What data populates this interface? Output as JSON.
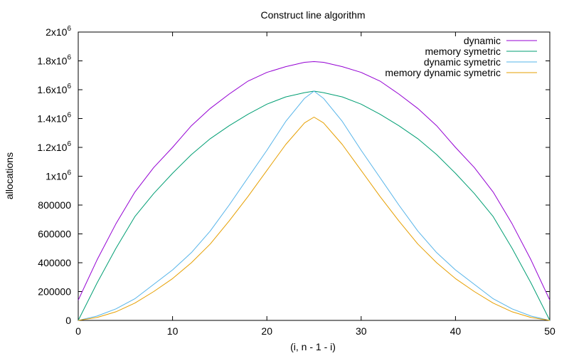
{
  "chart_data": {
    "type": "line",
    "title": "Construct line algorithm",
    "xlabel": "(i, n - 1 - i)",
    "ylabel": "allocations",
    "xlim": [
      0,
      50
    ],
    "ylim": [
      0,
      2000000
    ],
    "legend_position": "top-right",
    "grid": false,
    "x_ticks": [
      {
        "value": 0,
        "label": "0"
      },
      {
        "value": 10,
        "label": "10"
      },
      {
        "value": 20,
        "label": "20"
      },
      {
        "value": 30,
        "label": "30"
      },
      {
        "value": 40,
        "label": "40"
      },
      {
        "value": 50,
        "label": "50"
      }
    ],
    "y_ticks": [
      {
        "value": 0,
        "label": "0"
      },
      {
        "value": 200000,
        "label": "200000"
      },
      {
        "value": 400000,
        "label": "400000"
      },
      {
        "value": 600000,
        "label": "600000"
      },
      {
        "value": 800000,
        "label": "800000"
      },
      {
        "value": 1000000,
        "mantissa": "1x10",
        "exponent": "6"
      },
      {
        "value": 1200000,
        "mantissa": "1.2x10",
        "exponent": "6"
      },
      {
        "value": 1400000,
        "mantissa": "1.4x10",
        "exponent": "6"
      },
      {
        "value": 1600000,
        "mantissa": "1.6x10",
        "exponent": "6"
      },
      {
        "value": 1800000,
        "mantissa": "1.8x10",
        "exponent": "6"
      },
      {
        "value": 2000000,
        "mantissa": "2x10",
        "exponent": "6"
      }
    ],
    "x": [
      0,
      2,
      4,
      6,
      8,
      10,
      12,
      14,
      16,
      18,
      20,
      22,
      24,
      25,
      26,
      28,
      30,
      32,
      34,
      36,
      38,
      40,
      42,
      44,
      46,
      48,
      50
    ],
    "series": [
      {
        "name": "dynamic",
        "color": "#9400d3",
        "values": [
          140000,
          420000,
          670000,
          890000,
          1060000,
          1200000,
          1350000,
          1470000,
          1570000,
          1660000,
          1720000,
          1760000,
          1790000,
          1795000,
          1790000,
          1760000,
          1720000,
          1660000,
          1570000,
          1470000,
          1350000,
          1200000,
          1060000,
          890000,
          670000,
          420000,
          140000
        ]
      },
      {
        "name": "memory symetric",
        "color": "#009e73",
        "values": [
          0,
          260000,
          500000,
          720000,
          880000,
          1020000,
          1150000,
          1260000,
          1350000,
          1430000,
          1500000,
          1550000,
          1580000,
          1590000,
          1580000,
          1550000,
          1500000,
          1430000,
          1350000,
          1260000,
          1150000,
          1020000,
          880000,
          720000,
          500000,
          260000,
          0
        ]
      },
      {
        "name": "dynamic symetric",
        "color": "#56b4e9",
        "values": [
          0,
          30000,
          80000,
          150000,
          250000,
          350000,
          470000,
          620000,
          800000,
          990000,
          1180000,
          1380000,
          1540000,
          1590000,
          1540000,
          1380000,
          1180000,
          990000,
          800000,
          620000,
          470000,
          350000,
          250000,
          150000,
          80000,
          30000,
          0
        ]
      },
      {
        "name": "memory dynamic symetric",
        "color": "#e69f00",
        "values": [
          0,
          20000,
          60000,
          120000,
          200000,
          290000,
          400000,
          530000,
          690000,
          860000,
          1040000,
          1220000,
          1370000,
          1410000,
          1370000,
          1220000,
          1040000,
          860000,
          690000,
          530000,
          400000,
          290000,
          200000,
          120000,
          60000,
          20000,
          0
        ]
      }
    ]
  }
}
